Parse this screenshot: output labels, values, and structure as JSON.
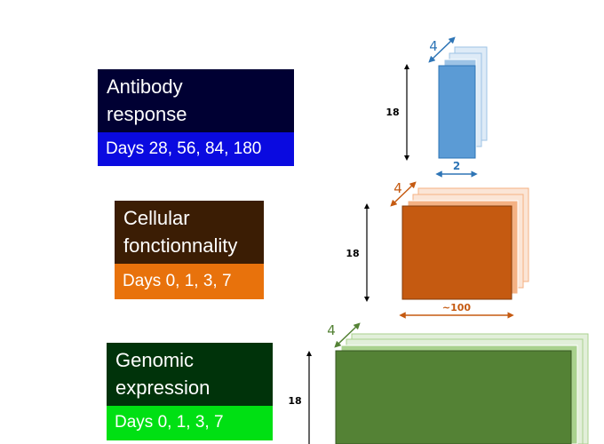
{
  "blocks": [
    {
      "title_lines": [
        "Antibody",
        "response"
      ],
      "days": "Days 28, 56, 84, 180",
      "dim_height": "18",
      "dim_depth": "4",
      "dim_width": "2",
      "colors": {
        "title_bg": "#000033",
        "days_bg": "#0a0ae0",
        "front": "#5b9bd5",
        "mid": "#9dc3e6",
        "back": "#deebf7",
        "arrow": "#2e75b6"
      }
    },
    {
      "title_lines": [
        "Cellular",
        "fonctionnality"
      ],
      "days": "Days 0, 1, 3, 7",
      "dim_height": "18",
      "dim_depth": "4",
      "dim_width": "~100",
      "colors": {
        "title_bg": "#3b1d04",
        "days_bg": "#e8720c",
        "front": "#c55a11",
        "mid": "#f4b183",
        "back": "#fbe5d6",
        "arrow": "#c55a11"
      }
    },
    {
      "title_lines": [
        "Genomic",
        "expression"
      ],
      "days": "Days 0, 1, 3, 7",
      "dim_height": "18",
      "dim_depth": "4",
      "dim_width": "",
      "colors": {
        "title_bg": "#00330a",
        "days_bg": "#00e013",
        "front": "#548235",
        "mid": "#a9d18e",
        "back": "#e2efda",
        "arrow": "#548235"
      }
    }
  ]
}
